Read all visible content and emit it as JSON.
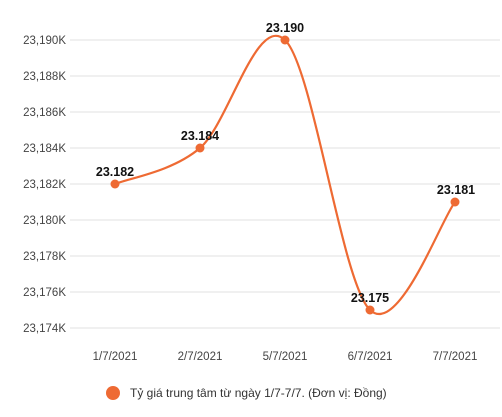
{
  "chart_data": {
    "type": "line",
    "categories": [
      "1/7/2021",
      "2/7/2021",
      "5/7/2021",
      "6/7/2021",
      "7/7/2021"
    ],
    "series": [
      {
        "name": "Tỷ giá trung tâm từ ngày 1/7-7/7. (Đơn vị: Đồng)",
        "values": [
          23182,
          23184,
          23190,
          23175,
          23181
        ],
        "data_labels": [
          "23.182",
          "23.184",
          "23.190",
          "23.175",
          "23.181"
        ],
        "color": "#ee6a33"
      }
    ],
    "ylim": [
      23173.5,
      23191
    ],
    "yticks": [
      23174,
      23176,
      23178,
      23180,
      23182,
      23184,
      23186,
      23188,
      23190
    ],
    "ytick_labels": [
      "23,174K",
      "23,176K",
      "23,178K",
      "23,180K",
      "23,182K",
      "23,184K",
      "23,186K",
      "23,188K",
      "23,190K"
    ],
    "grid": true,
    "legend": "bottom",
    "colors": {
      "grid": "#e2e2e2",
      "series": "#ee6a33"
    }
  }
}
